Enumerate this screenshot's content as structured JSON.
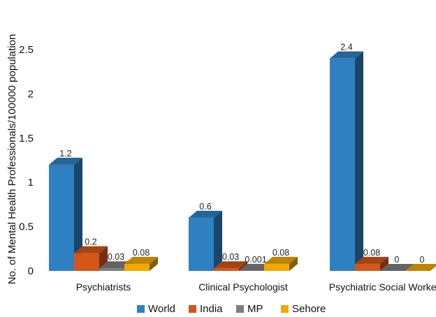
{
  "chart_data": {
    "type": "bar",
    "title": "",
    "xlabel": "",
    "ylabel": "No. of Mental Health Professionals/100000 population",
    "ylim": [
      0,
      2.5
    ],
    "yticks": [
      "0",
      "0.5",
      "1",
      "1.5",
      "2",
      "2.5"
    ],
    "categories": [
      "Psychiatrists",
      "Clinical Psychologist",
      "Psychiatric Social Worker"
    ],
    "series": [
      {
        "name": "World",
        "color": "#2e80c0",
        "values": [
          1.2,
          0.6,
          2.4
        ],
        "labels": [
          "1.2",
          "0.6",
          "2.4"
        ]
      },
      {
        "name": "India",
        "color": "#d4561a",
        "values": [
          0.2,
          0.03,
          0.08
        ],
        "labels": [
          "0.2",
          "0.03",
          "0.08"
        ]
      },
      {
        "name": "MP",
        "color": "#7f7f7f",
        "values": [
          0.03,
          0.001,
          0
        ],
        "labels": [
          "0.03",
          "0.001",
          "0"
        ]
      },
      {
        "name": "Sehore",
        "color": "#f5a800",
        "values": [
          0.08,
          0.08,
          0
        ],
        "labels": [
          "0.08",
          "0.08",
          "0"
        ]
      }
    ],
    "grid": false,
    "legend_position": "bottom"
  }
}
